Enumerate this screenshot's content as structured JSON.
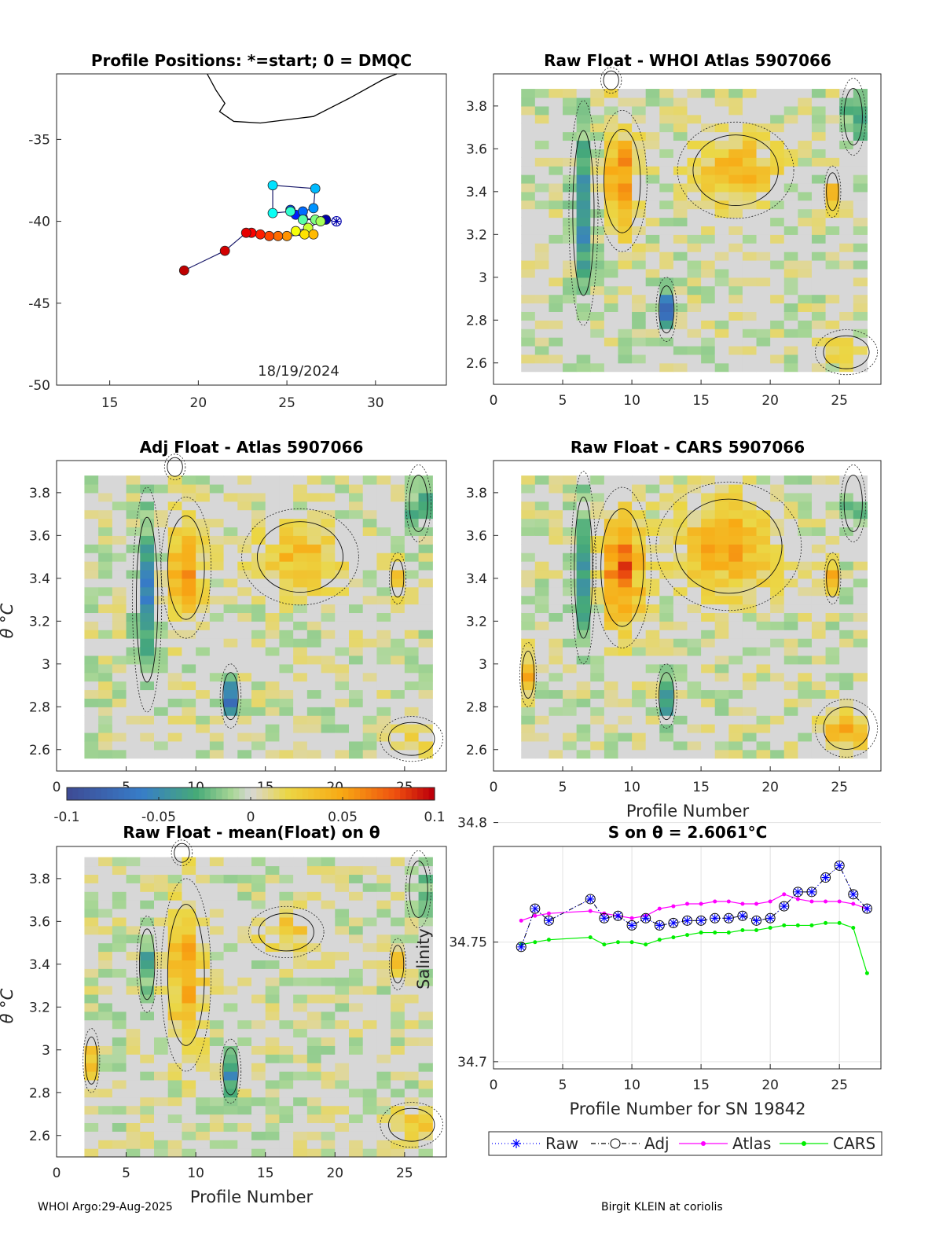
{
  "footer": {
    "left": "WHOI Argo:29-Aug-2025",
    "right": "Birgit KLEIN at coriolis"
  },
  "chart_data": [
    {
      "type": "scatter",
      "title": "Profile Positions: *=start; 0 = DMQC",
      "annotation": "18/19/2024",
      "xlim": [
        12,
        34
      ],
      "ylim": [
        -50,
        -31
      ],
      "xticks": [
        15,
        20,
        25,
        30
      ],
      "yticks": [
        -50,
        -45,
        -40,
        -35
      ],
      "coastline": [
        [
          20.5,
          -31
        ],
        [
          21.0,
          -32.0
        ],
        [
          21.5,
          -32.8
        ],
        [
          21.2,
          -33.3
        ],
        [
          22.0,
          -33.9
        ],
        [
          23.5,
          -34.0
        ],
        [
          25.0,
          -33.8
        ],
        [
          26.5,
          -33.6
        ],
        [
          28.5,
          -32.5
        ],
        [
          30.5,
          -31.3
        ],
        [
          31.2,
          -31.0
        ]
      ],
      "track": [
        [
          27.8,
          -40.0
        ],
        [
          27.2,
          -39.9
        ],
        [
          26.6,
          -39.9
        ],
        [
          25.9,
          -39.8
        ],
        [
          25.5,
          -39.6
        ],
        [
          25.2,
          -39.3
        ],
        [
          25.9,
          -39.4
        ],
        [
          26.5,
          -39.2
        ],
        [
          26.6,
          -38.0
        ],
        [
          24.2,
          -37.8
        ],
        [
          24.2,
          -39.5
        ],
        [
          25.2,
          -39.4
        ],
        [
          25.9,
          -39.9
        ],
        [
          26.6,
          -39.9
        ],
        [
          26.9,
          -40.0
        ],
        [
          26.2,
          -40.4
        ],
        [
          25.5,
          -40.6
        ],
        [
          26.0,
          -40.8
        ],
        [
          26.5,
          -40.8
        ],
        [
          25.0,
          -40.9
        ],
        [
          24.5,
          -40.9
        ],
        [
          24.0,
          -40.9
        ],
        [
          23.5,
          -40.8
        ],
        [
          23.0,
          -40.7
        ],
        [
          22.7,
          -40.7
        ],
        [
          21.5,
          -41.8
        ],
        [
          19.2,
          -43.0
        ]
      ]
    },
    {
      "type": "heatmap",
      "title": "Raw Float - WHOI Atlas  5907066",
      "xlabel": "",
      "ylabel": "",
      "xlim": [
        0,
        28
      ],
      "ylim": [
        2.5,
        3.95
      ],
      "xticks": [
        0,
        5,
        10,
        15,
        20,
        25
      ],
      "yticks": [
        2.6,
        2.8,
        3,
        3.2,
        3.4,
        3.6,
        3.8
      ],
      "seed": 11,
      "features": [
        [
          9.3,
          3.45,
          1.2,
          0.22,
          0.06
        ],
        [
          17.5,
          3.5,
          2.8,
          0.15,
          0.045
        ],
        [
          6.5,
          3.3,
          0.7,
          0.35,
          -0.05
        ],
        [
          12.5,
          2.85,
          0.5,
          0.1,
          -0.065
        ],
        [
          26,
          3.75,
          0.6,
          0.12,
          -0.045
        ],
        [
          25.5,
          2.65,
          1.5,
          0.07,
          0.025
        ],
        [
          24.5,
          3.4,
          0.4,
          0.08,
          0.03
        ],
        [
          8.5,
          3.92,
          0.5,
          0.04,
          0.08
        ]
      ],
      "mask": {
        "xmin": 2,
        "xmax": 27,
        "ymin": 2.56,
        "ymax": 3.88
      }
    },
    {
      "type": "heatmap",
      "title": "Adj Float - Atlas  5907066",
      "xlabel": "",
      "ylabel": "θ °C",
      "xlim": [
        0,
        28
      ],
      "ylim": [
        2.5,
        3.95
      ],
      "xticks": [
        0,
        5,
        10,
        15,
        20,
        25
      ],
      "yticks": [
        2.6,
        2.8,
        3,
        3.2,
        3.4,
        3.6,
        3.8
      ],
      "seed": 22,
      "features": [
        [
          9.3,
          3.45,
          1.2,
          0.22,
          0.06
        ],
        [
          17.5,
          3.5,
          2.8,
          0.15,
          0.042
        ],
        [
          6.5,
          3.3,
          0.7,
          0.35,
          -0.05
        ],
        [
          12.5,
          2.85,
          0.5,
          0.1,
          -0.065
        ],
        [
          26,
          3.75,
          0.6,
          0.12,
          -0.045
        ],
        [
          25.5,
          2.65,
          1.5,
          0.07,
          0.02
        ],
        [
          24.5,
          3.4,
          0.4,
          0.08,
          0.03
        ],
        [
          8.5,
          3.92,
          0.5,
          0.04,
          0.08
        ]
      ],
      "mask": {
        "xmin": 2,
        "xmax": 27,
        "ymin": 2.56,
        "ymax": 3.88
      }
    },
    {
      "type": "heatmap",
      "title": "Raw Float - CARS  5907066",
      "xlabel": "Profile Number",
      "ylabel": "",
      "xlim": [
        0,
        28
      ],
      "ylim": [
        2.5,
        3.95
      ],
      "xticks": [
        0,
        5,
        10,
        15,
        20,
        25
      ],
      "yticks": [
        2.6,
        2.8,
        3,
        3.2,
        3.4,
        3.6,
        3.8
      ],
      "seed": 33,
      "features": [
        [
          9.3,
          3.45,
          1.4,
          0.25,
          0.075
        ],
        [
          17.0,
          3.55,
          3.5,
          0.2,
          0.05
        ],
        [
          6.5,
          3.45,
          0.6,
          0.3,
          -0.04
        ],
        [
          12.5,
          2.85,
          0.5,
          0.1,
          -0.05
        ],
        [
          26,
          3.75,
          0.6,
          0.12,
          -0.035
        ],
        [
          25.5,
          2.7,
          1.5,
          0.09,
          0.055
        ],
        [
          24.5,
          3.4,
          0.4,
          0.08,
          0.05
        ],
        [
          2.5,
          2.95,
          0.4,
          0.1,
          0.04
        ]
      ],
      "mask": {
        "xmin": 2,
        "xmax": 27,
        "ymin": 2.56,
        "ymax": 3.88
      }
    },
    {
      "type": "heatmap",
      "title": "Raw Float - mean(Float) on θ",
      "xlabel": "Profile Number",
      "ylabel": "θ °C",
      "xlim": [
        0,
        28
      ],
      "ylim": [
        2.5,
        3.95
      ],
      "xticks": [
        0,
        5,
        10,
        15,
        20,
        25
      ],
      "yticks": [
        2.6,
        2.8,
        3,
        3.2,
        3.4,
        3.6,
        3.8
      ],
      "seed": 44,
      "features": [
        [
          9.3,
          3.35,
          1.2,
          0.3,
          0.05
        ],
        [
          16.5,
          3.55,
          1.8,
          0.08,
          0.035
        ],
        [
          12.5,
          2.9,
          0.5,
          0.1,
          -0.045
        ],
        [
          26,
          3.75,
          0.6,
          0.12,
          -0.03
        ],
        [
          25.5,
          2.65,
          1.5,
          0.07,
          0.035
        ],
        [
          24.5,
          3.4,
          0.4,
          0.08,
          0.03
        ],
        [
          9.0,
          3.92,
          0.5,
          0.04,
          0.09
        ],
        [
          2.5,
          2.95,
          0.4,
          0.1,
          0.03
        ],
        [
          6.5,
          3.4,
          0.5,
          0.15,
          -0.03
        ]
      ],
      "mask": {
        "xmin": 2,
        "xmax": 27,
        "ymin": 2.5,
        "ymax": 3.88
      }
    },
    {
      "type": "line",
      "title": "S on θ = 2.6061°C",
      "xlabel": "Profile Number for SN 19842",
      "ylabel": "Salinity",
      "xlim": [
        0,
        28
      ],
      "ylim": [
        34.697,
        34.79
      ],
      "xticks": [
        0,
        5,
        10,
        15,
        20,
        25
      ],
      "yticks": [
        34.7,
        34.75,
        34.8
      ],
      "legend": [
        "Raw",
        "Adj",
        "Atlas",
        "CARS"
      ],
      "x": [
        2,
        3,
        4,
        7,
        8,
        9,
        10,
        11,
        12,
        13,
        14,
        15,
        16,
        17,
        18,
        19,
        20,
        21,
        22,
        23,
        24,
        25,
        26,
        27
      ],
      "series": [
        {
          "name": "Raw",
          "color": "#0000ff",
          "values": [
            34.748,
            34.764,
            34.759,
            34.768,
            34.76,
            34.761,
            34.757,
            34.76,
            34.757,
            34.758,
            34.759,
            34.759,
            34.76,
            34.76,
            34.761,
            34.759,
            34.76,
            34.765,
            34.771,
            34.771,
            34.777,
            34.782,
            34.77,
            34.764
          ]
        },
        {
          "name": "Adj",
          "color": "#000000",
          "values": [
            34.748,
            34.764,
            34.759,
            34.768,
            34.76,
            34.761,
            34.757,
            34.76,
            34.757,
            34.758,
            34.759,
            34.759,
            34.76,
            34.76,
            34.761,
            34.759,
            34.76,
            34.765,
            34.771,
            34.771,
            34.777,
            34.782,
            34.77,
            34.764
          ]
        },
        {
          "name": "Atlas",
          "color": "#ff00ff",
          "values": [
            34.759,
            34.761,
            34.762,
            34.763,
            34.762,
            34.761,
            34.76,
            34.761,
            34.764,
            34.765,
            34.766,
            34.766,
            34.767,
            34.767,
            34.766,
            34.766,
            34.767,
            34.77,
            34.768,
            34.767,
            34.767,
            34.767,
            34.766,
            34.764
          ]
        },
        {
          "name": "CARS",
          "color": "#00ee00",
          "values": [
            34.749,
            34.75,
            34.751,
            34.752,
            34.749,
            34.75,
            34.75,
            34.749,
            34.751,
            34.752,
            34.753,
            34.754,
            34.754,
            34.754,
            34.755,
            34.755,
            34.756,
            34.757,
            34.757,
            34.757,
            34.758,
            34.758,
            34.756,
            34.737
          ]
        }
      ]
    }
  ],
  "colorbar": {
    "min": -0.1,
    "max": 0.1,
    "ticks": [
      "-0.1",
      "-0.05",
      "0",
      "0.05",
      "0.1"
    ]
  }
}
